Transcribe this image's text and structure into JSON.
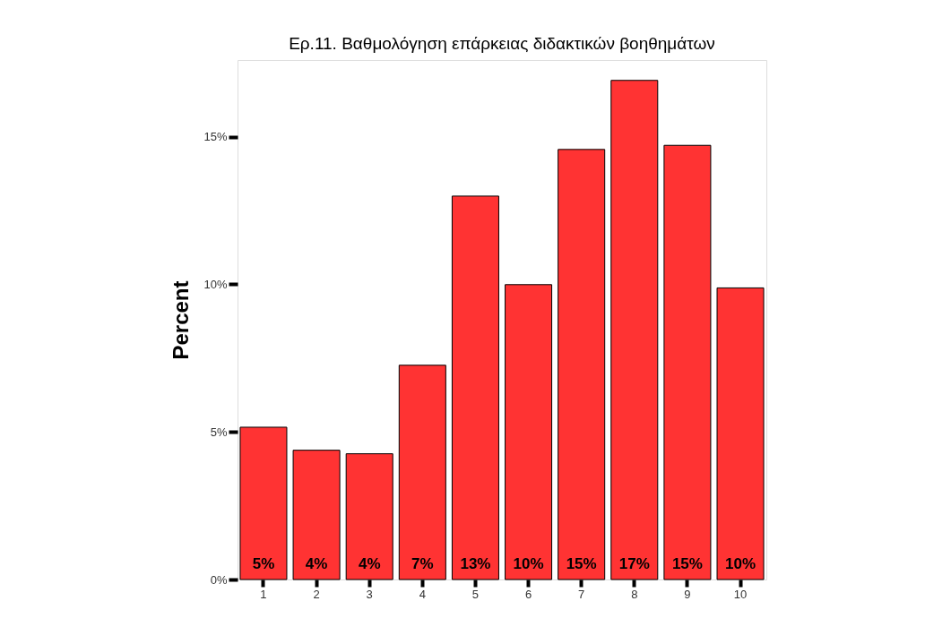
{
  "chart_data": {
    "type": "bar",
    "title": "Ερ.11. Βαθμολόγηση επάρκειας διδακτικών βοηθημάτων",
    "ylabel": "Percent",
    "categories": [
      "1",
      "2",
      "3",
      "4",
      "5",
      "6",
      "7",
      "8",
      "9",
      "10"
    ],
    "values": [
      5.16,
      4.38,
      4.26,
      7.26,
      12.99,
      9.99,
      14.57,
      16.91,
      14.71,
      9.88
    ],
    "value_labels": [
      "5%",
      "4%",
      "4%",
      "7%",
      "13%",
      "10%",
      "15%",
      "17%",
      "15%",
      "10%"
    ],
    "color": "#ff3333",
    "ylim": [
      0,
      17.6
    ],
    "yticks": [
      {
        "value": 0,
        "label": "0%"
      },
      {
        "value": 5,
        "label": "5%"
      },
      {
        "value": 10,
        "label": "10%"
      },
      {
        "value": 15,
        "label": "15%"
      }
    ],
    "grid": false
  }
}
